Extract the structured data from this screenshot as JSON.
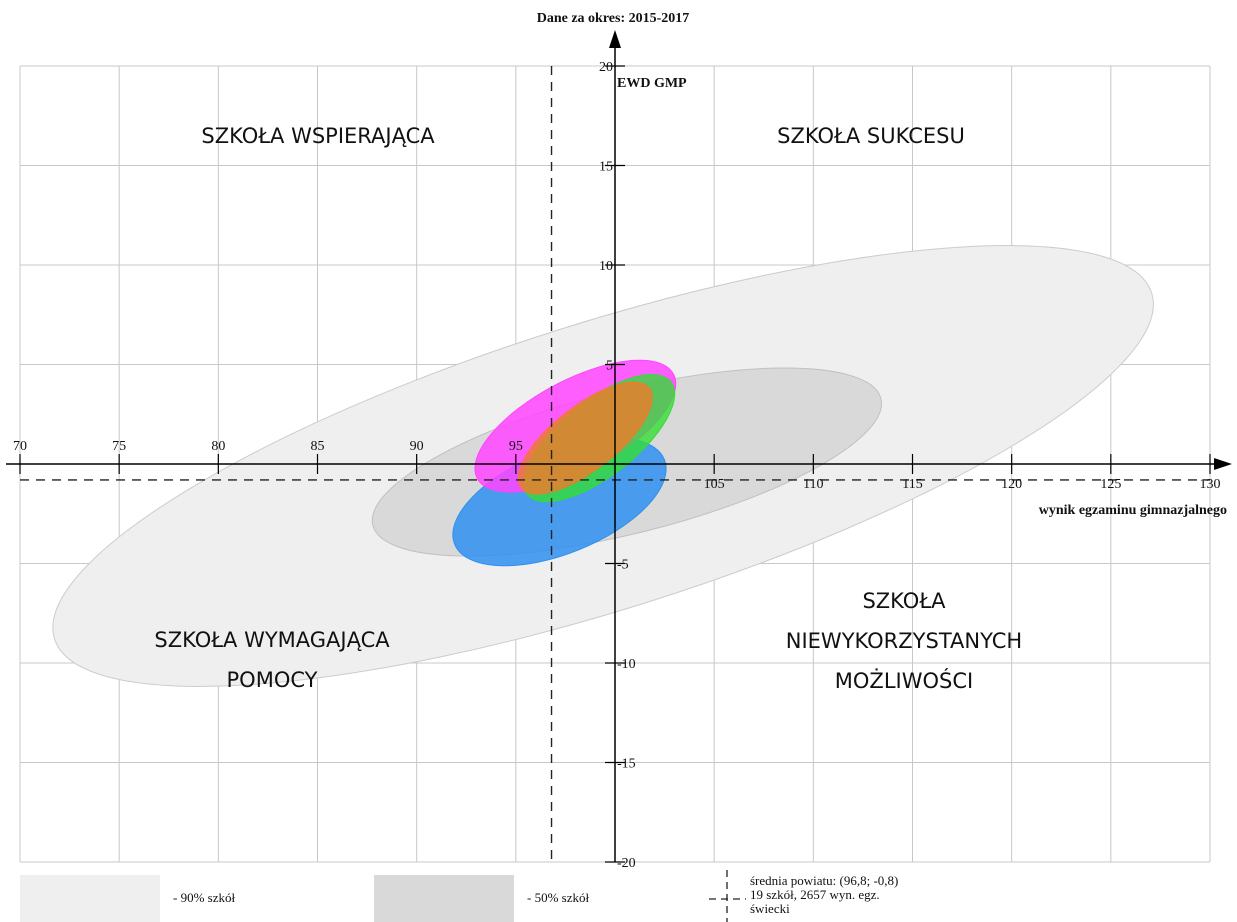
{
  "chart_data": {
    "type": "scatter",
    "title": "Dane za okres: 2015-2017",
    "xlabel": "wynik egzaminu gimnazjalnego",
    "ylabel": "EWD GMP",
    "xlim": [
      70,
      130
    ],
    "ylim": [
      -20,
      20
    ],
    "x_ticks": [
      70,
      75,
      80,
      85,
      90,
      95,
      100,
      105,
      110,
      115,
      120,
      125,
      130
    ],
    "y_ticks": [
      -20,
      -15,
      -10,
      -5,
      0,
      5,
      10,
      15,
      20
    ],
    "x_tick_labels": [
      "70",
      "75",
      "80",
      "85",
      "90",
      "95",
      "",
      "105",
      "110",
      "115",
      "120",
      "125",
      "130"
    ],
    "y_tick_labels": [
      "-20",
      "-15",
      "-10",
      "-5",
      "",
      "5",
      "10",
      "15",
      "20"
    ],
    "grid": true,
    "reference_lines": {
      "mean_x": 96.8,
      "mean_y": -0.8
    },
    "quadrants": {
      "top_left": [
        "SZKOŁA WSPIERAJĄCA"
      ],
      "top_right": [
        "SZKOŁA SUKCESU"
      ],
      "bottom_left": [
        "SZKOŁA WYMAGAJĄCA",
        "POMOCY"
      ],
      "bottom_right": [
        "SZKOŁA",
        "NIEWYKORZYSTANYCH",
        "MOŻLIWOŚCI"
      ]
    },
    "ellipses": [
      {
        "kind": "range-90",
        "cx": 99.4,
        "cy": -0.1,
        "rx": 29.0,
        "ry": 7.2,
        "angle_deg": -17.5,
        "color": "#efefef",
        "stroke": "#cccccc",
        "opacity": 1
      },
      {
        "kind": "range-50",
        "cx": 100.6,
        "cy": 0.1,
        "rx": 13.2,
        "ry": 3.6,
        "angle_deg": -14,
        "color": "#d9d9d9",
        "stroke": "#c0c0c0",
        "opacity": 1
      },
      {
        "kind": "school",
        "cx": 97.2,
        "cy": -1.9,
        "rx": 5.7,
        "ry": 2.6,
        "angle_deg": -22,
        "color": "#2f8ff0",
        "stroke": "#2f8ff0",
        "opacity": 0.85
      },
      {
        "kind": "school",
        "cx": 98.0,
        "cy": 1.9,
        "rx": 5.6,
        "ry": 2.3,
        "angle_deg": -28,
        "color": "#ff44ff",
        "stroke": "#ff44ff",
        "opacity": 0.85
      },
      {
        "kind": "school",
        "cx": 99.2,
        "cy": 1.3,
        "rx": 4.6,
        "ry": 1.9,
        "angle_deg": -38,
        "color": "#33dd33",
        "stroke": "#33dd33",
        "opacity": 0.8
      },
      {
        "kind": "school",
        "cx": 98.5,
        "cy": 1.3,
        "rx": 4.1,
        "ry": 1.6,
        "angle_deg": -38,
        "color": "#f07a2a",
        "stroke": "#f07a2a",
        "opacity": 0.8
      }
    ],
    "legend": {
      "items": [
        {
          "label": "- 90% szkół",
          "color": "#efefef"
        },
        {
          "label": "- 50% szkół",
          "color": "#d9d9d9"
        }
      ],
      "mean_lines": [
        "średnia powiatu: (96,8; -0,8)",
        "19 szkół, 2657 wyn. egz.",
        "świecki"
      ]
    }
  }
}
